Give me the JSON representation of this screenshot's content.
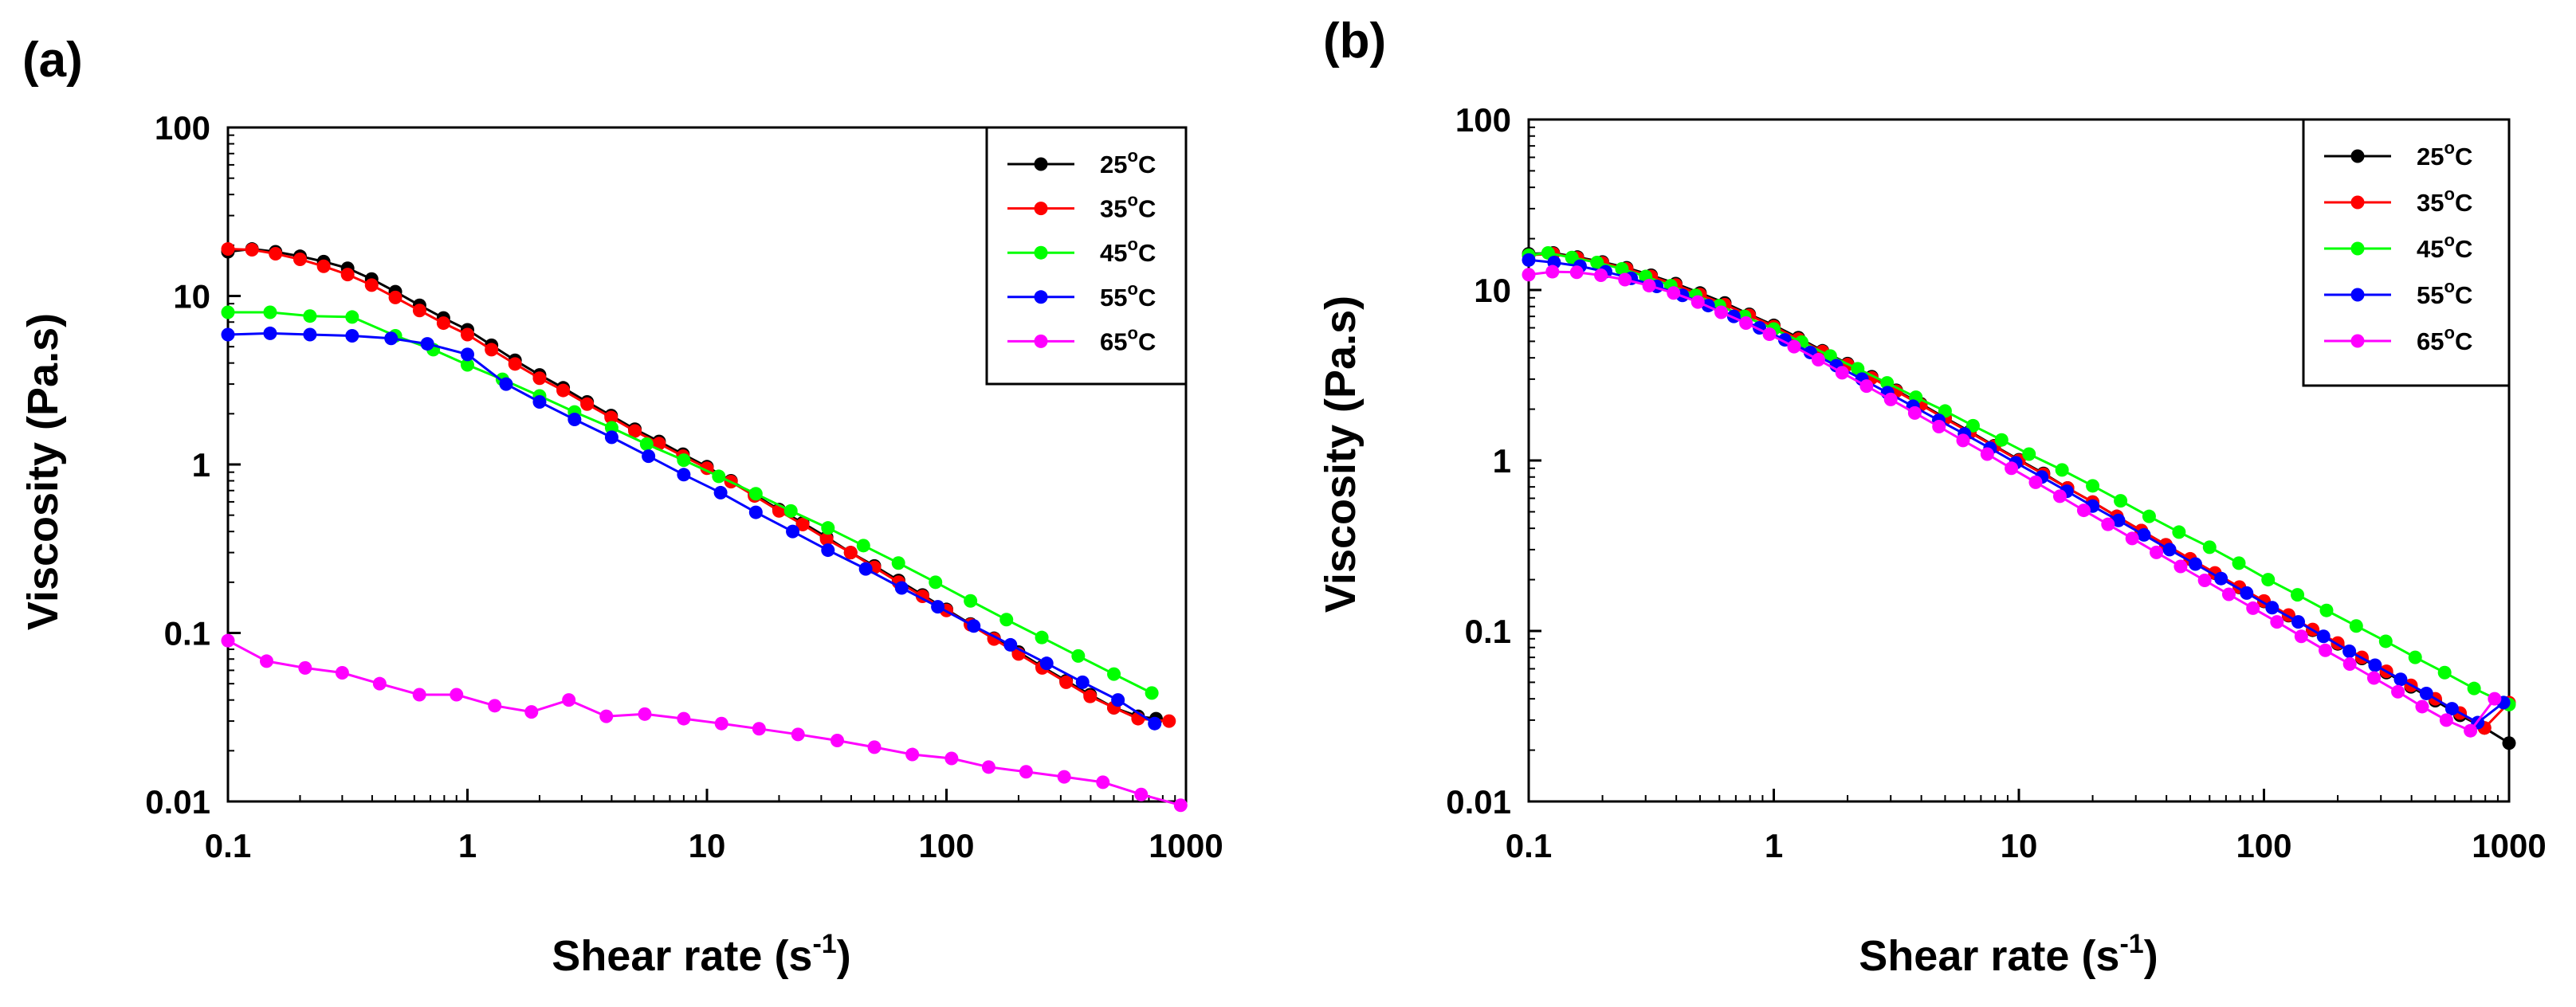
{
  "chart_data": [
    {
      "panel": "(a)",
      "type": "line",
      "xscale": "log",
      "yscale": "log",
      "xlabel": "Shear rate (s",
      "xlabel_sup": "-1",
      "xlabel_close": ")",
      "ylabel": "Viscosity (Pa.s)",
      "xlim": [
        0.1,
        1000
      ],
      "ylim": [
        0.01,
        100
      ],
      "xticks": [
        0.1,
        1,
        10,
        100,
        1000
      ],
      "xtick_labels": [
        "0.1",
        "1",
        "10",
        "100",
        "1000"
      ],
      "yticks": [
        0.01,
        0.1,
        1,
        10,
        100
      ],
      "ytick_labels": [
        "0.01",
        "0.1",
        "1",
        "10",
        "100"
      ],
      "legend_position": "top-right",
      "series": [
        {
          "name": "25",
          "unit": "oC",
          "color": "#000000",
          "x": [
            0.1,
            0.126,
            0.158,
            0.2,
            0.251,
            0.316,
            0.398,
            0.5,
            0.631,
            0.794,
            1,
            1.26,
            1.58,
            2,
            2.51,
            3.16,
            3.98,
            5,
            6.31,
            7.94,
            10,
            12.6,
            15.8,
            20,
            25.1,
            31.6,
            39.8,
            50,
            63.1,
            79.4,
            100,
            126,
            158,
            200,
            251,
            316,
            398,
            500,
            631,
            750
          ],
          "y": [
            18.3,
            19.0,
            18.3,
            17.2,
            16.0,
            14.6,
            12.6,
            10.6,
            8.8,
            7.4,
            6.3,
            5.1,
            4.15,
            3.4,
            2.85,
            2.35,
            1.95,
            1.62,
            1.37,
            1.15,
            0.97,
            0.8,
            0.66,
            0.54,
            0.45,
            0.37,
            0.3,
            0.25,
            0.205,
            0.168,
            0.138,
            0.113,
            0.093,
            0.077,
            0.063,
            0.052,
            0.043,
            0.036,
            0.032,
            0.031
          ]
        },
        {
          "name": "35",
          "unit": "oC",
          "color": "#ff0000",
          "x": [
            0.1,
            0.126,
            0.158,
            0.2,
            0.251,
            0.316,
            0.398,
            0.5,
            0.631,
            0.794,
            1,
            1.26,
            1.58,
            2,
            2.51,
            3.16,
            3.98,
            5,
            6.31,
            7.94,
            10,
            12.6,
            15.8,
            20,
            25.1,
            31.6,
            39.8,
            50,
            63.1,
            79.4,
            100,
            126,
            158,
            200,
            251,
            316,
            398,
            500,
            631,
            850
          ],
          "y": [
            19.0,
            18.8,
            17.8,
            16.5,
            15.0,
            13.4,
            11.6,
            9.8,
            8.2,
            6.9,
            5.9,
            4.8,
            3.95,
            3.25,
            2.75,
            2.28,
            1.9,
            1.58,
            1.33,
            1.12,
            0.95,
            0.79,
            0.65,
            0.53,
            0.44,
            0.36,
            0.3,
            0.245,
            0.2,
            0.165,
            0.136,
            0.112,
            0.092,
            0.075,
            0.062,
            0.051,
            0.042,
            0.036,
            0.031,
            0.03
          ]
        },
        {
          "name": "45",
          "unit": "oC",
          "color": "#00ff00",
          "x": [
            0.1,
            0.15,
            0.22,
            0.33,
            0.5,
            0.72,
            1,
            1.4,
            2,
            2.8,
            4,
            5.6,
            8,
            11.2,
            16,
            22.4,
            32,
            45,
            63,
            90,
            126,
            178,
            250,
            355,
            500,
            720
          ],
          "y": [
            8.0,
            8.0,
            7.6,
            7.5,
            5.8,
            4.8,
            3.9,
            3.2,
            2.55,
            2.05,
            1.65,
            1.32,
            1.06,
            0.85,
            0.67,
            0.53,
            0.42,
            0.33,
            0.26,
            0.2,
            0.155,
            0.12,
            0.094,
            0.073,
            0.057,
            0.044
          ]
        },
        {
          "name": "55",
          "unit": "oC",
          "color": "#0000ff",
          "x": [
            0.1,
            0.15,
            0.22,
            0.33,
            0.48,
            0.68,
            1,
            1.45,
            2,
            2.8,
            4,
            5.7,
            8,
            11.4,
            16,
            22.8,
            32,
            46,
            65,
            92,
            130,
            185,
            262,
            370,
            520,
            740
          ],
          "y": [
            5.9,
            6.0,
            5.9,
            5.8,
            5.6,
            5.2,
            4.5,
            3.0,
            2.35,
            1.85,
            1.45,
            1.12,
            0.87,
            0.68,
            0.52,
            0.4,
            0.31,
            0.24,
            0.185,
            0.143,
            0.11,
            0.085,
            0.066,
            0.051,
            0.04,
            0.029
          ]
        },
        {
          "name": "65",
          "unit": "oC",
          "color": "#ff00ff",
          "x": [
            0.1,
            0.145,
            0.21,
            0.3,
            0.43,
            0.63,
            0.9,
            1.3,
            1.85,
            2.65,
            3.8,
            5.5,
            8,
            11.5,
            16.5,
            24,
            35,
            50,
            72,
            105,
            150,
            215,
            310,
            450,
            650,
            950
          ],
          "y": [
            0.09,
            0.068,
            0.062,
            0.058,
            0.05,
            0.043,
            0.043,
            0.037,
            0.034,
            0.04,
            0.032,
            0.033,
            0.031,
            0.029,
            0.027,
            0.025,
            0.023,
            0.021,
            0.019,
            0.018,
            0.016,
            0.015,
            0.014,
            0.013,
            0.011,
            0.0095
          ]
        }
      ]
    },
    {
      "panel": "(b)",
      "type": "line",
      "xscale": "log",
      "yscale": "log",
      "xlabel": "Shear rate (s",
      "xlabel_sup": "-1",
      "xlabel_close": ")",
      "ylabel": "Viscosity (Pa.s)",
      "xlim": [
        0.1,
        1000
      ],
      "ylim": [
        0.01,
        100
      ],
      "xticks": [
        0.1,
        1,
        10,
        100,
        1000
      ],
      "xtick_labels": [
        "0.1",
        "1",
        "10",
        "100",
        "1000"
      ],
      "yticks": [
        0.01,
        0.1,
        1,
        10,
        100
      ],
      "ytick_labels": [
        "0.01",
        "0.1",
        "1",
        "10",
        "100"
      ],
      "legend_position": "top-right",
      "series": [
        {
          "name": "25",
          "unit": "oC",
          "color": "#000000",
          "x": [
            0.1,
            0.126,
            0.158,
            0.2,
            0.251,
            0.316,
            0.398,
            0.5,
            0.631,
            0.794,
            1,
            1.26,
            1.58,
            2,
            2.51,
            3.16,
            3.98,
            5,
            6.31,
            7.94,
            10,
            12.6,
            15.8,
            20,
            25.1,
            31.6,
            39.8,
            50,
            63.1,
            79.4,
            100,
            126,
            158,
            200,
            251,
            316,
            398,
            500,
            631,
            794,
            1000
          ],
          "y": [
            16.3,
            16.5,
            15.6,
            14.6,
            13.5,
            12.2,
            10.9,
            9.6,
            8.4,
            7.2,
            6.2,
            5.25,
            4.4,
            3.7,
            3.1,
            2.58,
            2.15,
            1.78,
            1.48,
            1.22,
            1.01,
            0.84,
            0.69,
            0.57,
            0.47,
            0.388,
            0.32,
            0.264,
            0.218,
            0.18,
            0.149,
            0.123,
            0.101,
            0.084,
            0.069,
            0.057,
            0.047,
            0.039,
            0.032,
            0.027,
            0.022
          ]
        },
        {
          "name": "35",
          "unit": "oC",
          "color": "#ff0000",
          "x": [
            0.1,
            0.126,
            0.158,
            0.2,
            0.251,
            0.316,
            0.398,
            0.5,
            0.631,
            0.794,
            1,
            1.26,
            1.58,
            2,
            2.51,
            3.16,
            3.98,
            5,
            6.31,
            7.94,
            10,
            12.6,
            15.8,
            20,
            25.1,
            31.6,
            39.8,
            50,
            63.1,
            79.4,
            100,
            126,
            158,
            200,
            251,
            316,
            398,
            500,
            631,
            794,
            1000
          ],
          "y": [
            16.0,
            16.3,
            15.4,
            14.4,
            13.3,
            12.0,
            10.7,
            9.4,
            8.2,
            7.1,
            6.1,
            5.15,
            4.35,
            3.65,
            3.05,
            2.55,
            2.12,
            1.76,
            1.46,
            1.21,
            1.0,
            0.83,
            0.69,
            0.57,
            0.47,
            0.388,
            0.32,
            0.265,
            0.219,
            0.181,
            0.15,
            0.124,
            0.102,
            0.085,
            0.07,
            0.058,
            0.048,
            0.04,
            0.033,
            0.027,
            0.038
          ]
        },
        {
          "name": "45",
          "unit": "oC",
          "color": "#00ff00",
          "x": [
            0.1,
            0.12,
            0.15,
            0.19,
            0.24,
            0.3,
            0.38,
            0.48,
            0.6,
            0.76,
            1,
            1.3,
            1.7,
            2.2,
            2.9,
            3.8,
            5,
            6.5,
            8.5,
            11,
            15,
            20,
            26,
            34,
            45,
            60,
            79,
            104,
            137,
            180,
            238,
            314,
            414,
            546,
            720,
            950,
            1000
          ],
          "y": [
            16.0,
            16.5,
            15.5,
            14.5,
            13.3,
            12.0,
            10.6,
            9.3,
            8.1,
            7.0,
            5.9,
            4.95,
            4.1,
            3.45,
            2.85,
            2.35,
            1.95,
            1.6,
            1.32,
            1.09,
            0.88,
            0.71,
            0.58,
            0.47,
            0.38,
            0.31,
            0.25,
            0.2,
            0.163,
            0.132,
            0.107,
            0.087,
            0.07,
            0.057,
            0.046,
            0.038,
            0.037
          ]
        },
        {
          "name": "55",
          "unit": "oC",
          "color": "#0000ff",
          "x": [
            0.1,
            0.127,
            0.162,
            0.206,
            0.262,
            0.333,
            0.424,
            0.54,
            0.687,
            0.874,
            1.11,
            1.41,
            1.8,
            2.29,
            2.91,
            3.7,
            4.71,
            6,
            7.63,
            9.71,
            12.4,
            15.7,
            20,
            25.5,
            32.4,
            41.2,
            52.5,
            66.8,
            85,
            108,
            138,
            175,
            223,
            284,
            361,
            460,
            585,
            745,
            950
          ],
          "y": [
            15.0,
            14.5,
            13.8,
            12.8,
            11.7,
            10.5,
            9.3,
            8.1,
            7.0,
            6.0,
            5.1,
            4.3,
            3.6,
            3.0,
            2.5,
            2.08,
            1.72,
            1.43,
            1.18,
            0.97,
            0.8,
            0.66,
            0.54,
            0.445,
            0.366,
            0.3,
            0.247,
            0.203,
            0.167,
            0.137,
            0.113,
            0.093,
            0.076,
            0.063,
            0.052,
            0.043,
            0.035,
            0.029,
            0.038
          ]
        },
        {
          "name": "65",
          "unit": "oC",
          "color": "#ff00ff",
          "x": [
            0.1,
            0.125,
            0.157,
            0.197,
            0.247,
            0.31,
            0.39,
            0.49,
            0.61,
            0.77,
            0.96,
            1.21,
            1.52,
            1.9,
            2.39,
            3,
            3.76,
            4.72,
            5.92,
            7.43,
            9.32,
            11.7,
            14.7,
            18.4,
            23.1,
            29,
            36.4,
            45.7,
            57.3,
            71.9,
            90.2,
            113,
            142,
            178,
            224,
            281,
            352,
            442,
            555,
            696,
            873
          ],
          "y": [
            12.3,
            12.8,
            12.7,
            12.2,
            11.5,
            10.6,
            9.6,
            8.5,
            7.4,
            6.4,
            5.5,
            4.65,
            3.9,
            3.27,
            2.73,
            2.28,
            1.9,
            1.58,
            1.31,
            1.09,
            0.9,
            0.745,
            0.617,
            0.51,
            0.422,
            0.349,
            0.289,
            0.239,
            0.198,
            0.164,
            0.136,
            0.113,
            0.093,
            0.077,
            0.064,
            0.053,
            0.044,
            0.036,
            0.03,
            0.026,
            0.04
          ]
        }
      ]
    }
  ]
}
